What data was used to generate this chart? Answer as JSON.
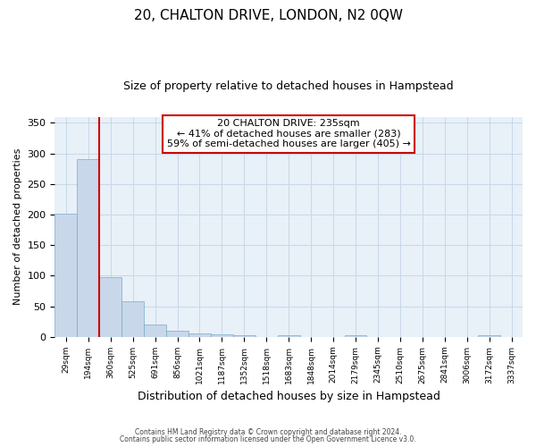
{
  "title1": "20, CHALTON DRIVE, LONDON, N2 0QW",
  "title2": "Size of property relative to detached houses in Hampstead",
  "xlabel": "Distribution of detached houses by size in Hampstead",
  "ylabel": "Number of detached properties",
  "bar_labels": [
    "29sqm",
    "194sqm",
    "360sqm",
    "525sqm",
    "691sqm",
    "856sqm",
    "1021sqm",
    "1187sqm",
    "1352sqm",
    "1518sqm",
    "1683sqm",
    "1848sqm",
    "2014sqm",
    "2179sqm",
    "2345sqm",
    "2510sqm",
    "2675sqm",
    "2841sqm",
    "3006sqm",
    "3172sqm",
    "3337sqm"
  ],
  "bar_values": [
    202,
    290,
    98,
    58,
    20,
    10,
    5,
    4,
    2,
    0,
    3,
    0,
    0,
    3,
    0,
    0,
    0,
    0,
    0,
    3,
    0
  ],
  "bar_color": "#c8d8ea",
  "bar_edge_color": "#7aaac8",
  "vline_x": 1.5,
  "vline_color": "#cc0000",
  "annotation_title": "20 CHALTON DRIVE: 235sqm",
  "annotation_line2": "← 41% of detached houses are smaller (283)",
  "annotation_line3": "59% of semi-detached houses are larger (405) →",
  "annotation_box_color": "#ffffff",
  "annotation_border_color": "#cc0000",
  "ylim": [
    0,
    360
  ],
  "yticks": [
    0,
    50,
    100,
    150,
    200,
    250,
    300,
    350
  ],
  "grid_color": "#c8d8e8",
  "background_color": "#e8f0f8",
  "footer1": "Contains HM Land Registry data © Crown copyright and database right 2024.",
  "footer2": "Contains public sector information licensed under the Open Government Licence v3.0."
}
